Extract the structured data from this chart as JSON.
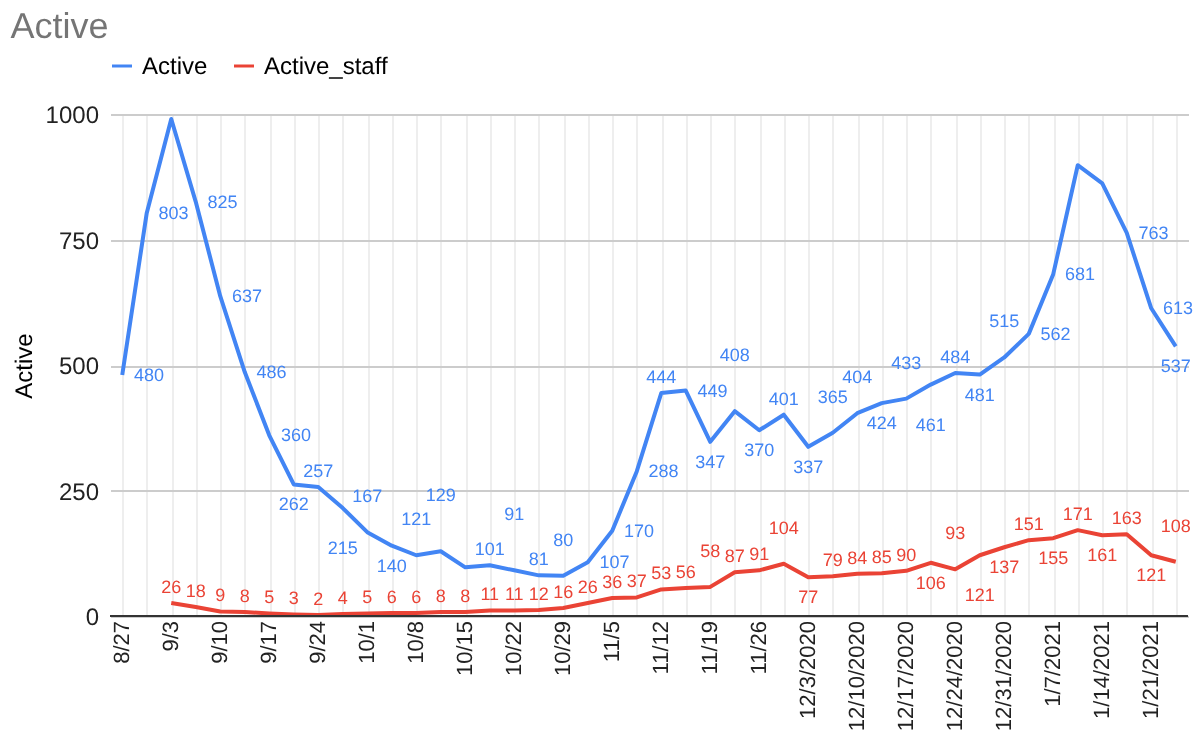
{
  "chart_data": {
    "type": "line",
    "title": "Active",
    "ylabel": "Active",
    "categories": [
      "8/27",
      null,
      "9/3",
      null,
      "9/10",
      null,
      "9/17",
      null,
      "9/24",
      null,
      "10/1",
      null,
      "10/8",
      null,
      "10/15",
      null,
      "10/22",
      null,
      "10/29",
      null,
      "11/5",
      null,
      "11/12",
      null,
      "11/19",
      null,
      "11/26",
      null,
      "12/3/2020",
      null,
      "12/10/2020",
      null,
      "12/17/2020",
      null,
      "12/24/2020",
      null,
      "12/31/2020",
      null,
      "1/7/2021",
      null,
      "1/14/2021",
      null,
      "1/21/2021",
      null
    ],
    "series": [
      {
        "name": "Active",
        "color": "#4285f4",
        "values": [
          480,
          803,
          990,
          825,
          637,
          486,
          360,
          262,
          257,
          215,
          167,
          140,
          121,
          129,
          97,
          101,
          91,
          81,
          80,
          107,
          170,
          288,
          444,
          449,
          347,
          408,
          370,
          401,
          337,
          365,
          404,
          424,
          433,
          461,
          484,
          481,
          515,
          562,
          681,
          898,
          862,
          763,
          613,
          537
        ],
        "value_labels": [
          "480",
          "803",
          null,
          "825",
          "637",
          "486",
          "360",
          "262",
          "257",
          "215",
          "167",
          "140",
          "121",
          "129",
          null,
          "101",
          "91",
          "81",
          "80",
          "107",
          "170",
          "288",
          "444",
          "449",
          "347",
          "408",
          "370",
          "401",
          "337",
          "365",
          "404",
          "424",
          "433",
          "461",
          "484",
          "481",
          "515",
          "562",
          "681",
          null,
          null,
          "763",
          "613",
          "537"
        ]
      },
      {
        "name": "Active_staff",
        "color": "#ea4335",
        "values": [
          null,
          null,
          26,
          18,
          9,
          8,
          5,
          3,
          2,
          4,
          5,
          6,
          6,
          8,
          8,
          11,
          11,
          12,
          16,
          26,
          36,
          37,
          53,
          56,
          58,
          87,
          91,
          104,
          77,
          79,
          84,
          85,
          90,
          106,
          93,
          121,
          137,
          151,
          155,
          171,
          161,
          163,
          121,
          108
        ],
        "value_labels": [
          null,
          null,
          "26",
          "18",
          "9",
          "8",
          "5",
          "3",
          "2",
          "4",
          "5",
          "6",
          "6",
          "8",
          "8",
          "11",
          "11",
          "12",
          "16",
          "26",
          "36",
          "37",
          "53",
          "56",
          "58",
          "87",
          "91",
          "104",
          "77",
          "79",
          "84",
          "85",
          "90",
          "106",
          "93",
          "121",
          "137",
          "151",
          "155",
          "171",
          "161",
          "163",
          "121",
          "108"
        ]
      }
    ],
    "ylim": [
      0,
      1000
    ],
    "yticks": [
      0,
      250,
      500,
      750,
      {
        "value": 1000,
        "label": "1000"
      }
    ],
    "grid": true,
    "legend": "top"
  }
}
